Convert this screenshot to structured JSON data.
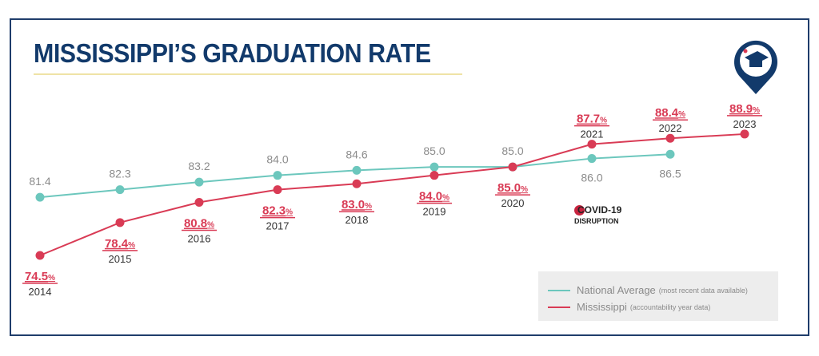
{
  "header": {
    "title": "MISSISSIPPI’S GRADUATION RATE"
  },
  "annotation": {
    "covid_line1": "COVID-19",
    "covid_line2": "DISRUPTION"
  },
  "colors": {
    "national": "#6cc7bd",
    "mississippi": "#d93b55",
    "title": "#123a6b"
  },
  "icon": "graduation-cap-map-pin-icon",
  "chart_data": {
    "type": "line",
    "title": "MISSISSIPPI’S GRADUATION RATE",
    "xlabel": "",
    "ylabel": "",
    "grid": false,
    "legend_position": "bottom-right",
    "series": [
      {
        "name": "National Average",
        "note": "(most recent data available)",
        "x": [
          "2014",
          "2015",
          "2016",
          "2017",
          "2018",
          "2019",
          "2020",
          "2021",
          "2022"
        ],
        "values": [
          81.4,
          82.3,
          83.2,
          84.0,
          84.6,
          85.0,
          85.0,
          86.0,
          86.5
        ],
        "labels": [
          "81.4",
          "82.3",
          "83.2",
          "84.0",
          "84.6",
          "85.0",
          "85.0",
          "86.0",
          "86.5"
        ]
      },
      {
        "name": "Mississippi",
        "note": "(accountability year data)",
        "x": [
          "2014",
          "2015",
          "2016",
          "2017",
          "2018",
          "2019",
          "2020",
          "2021",
          "2022",
          "2023"
        ],
        "values": [
          74.5,
          78.4,
          80.8,
          82.3,
          83.0,
          84.0,
          85.0,
          87.7,
          88.4,
          88.9
        ],
        "labels": [
          "74.5",
          "78.4",
          "80.8",
          "82.3",
          "83.0",
          "84.0",
          "85.0",
          "87.7",
          "88.4",
          "88.9"
        ],
        "unit": "%"
      }
    ]
  }
}
